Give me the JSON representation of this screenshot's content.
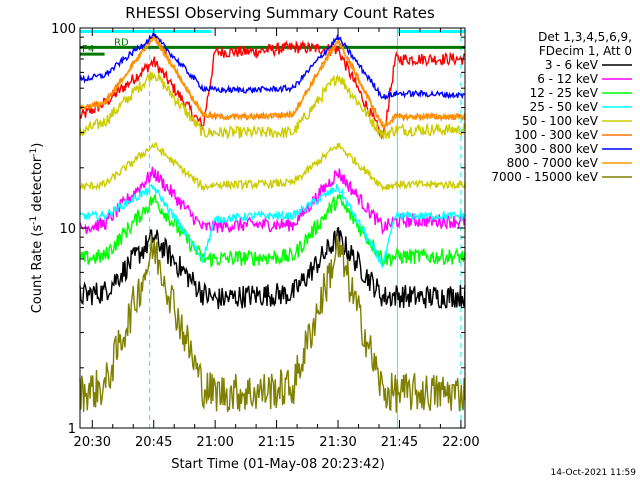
{
  "chart_data": {
    "type": "line",
    "title": "RHESSI Observing Summary Count Rates",
    "xlabel": "Start Time (01-May-08 20:23:42)",
    "ylabel": "Count Rate (s",
    "ylabel_sup": "-1",
    "ylabel_tail": " detector",
    "ylabel_end": ")",
    "y_scale": "log",
    "ylim": [
      1,
      100
    ],
    "x_unit": "minutes after 20:00 UT",
    "xlim": [
      27,
      121
    ],
    "x_ticks": [
      {
        "label": "20:30",
        "value": 30
      },
      {
        "label": "20:45",
        "value": 45
      },
      {
        "label": "21:00",
        "value": 60
      },
      {
        "label": "21:15",
        "value": 75
      },
      {
        "label": "21:30",
        "value": 90
      },
      {
        "label": "21:45",
        "value": 105
      },
      {
        "label": "22:00",
        "value": 120
      }
    ],
    "y_ticks": [
      {
        "label": "1",
        "value": 1
      },
      {
        "label": "10",
        "value": 10
      },
      {
        "label": "100",
        "value": 100
      }
    ],
    "legend_header": [
      "Det 1,3,4,5,6,9,",
      "FDecim 1, Att 0"
    ],
    "legend_position": "right",
    "series": [
      {
        "name": "3 - 6 keV",
        "color": "#000000",
        "base": 4.6,
        "peak": 9.0,
        "noise": 0.12,
        "x": [
          27,
          33,
          45,
          57,
          60,
          69,
          79,
          90,
          101,
          104,
          110,
          121
        ],
        "y": [
          4.6,
          4.8,
          9.0,
          4.7,
          4.4,
          4.6,
          4.7,
          9.0,
          4.5,
          4.6,
          4.5,
          4.6
        ]
      },
      {
        "name": "6 - 12 keV",
        "color": "#ff00ff",
        "base": 10.0,
        "peak": 19.0,
        "noise": 0.07,
        "x": [
          27,
          33,
          45,
          57,
          60,
          69,
          79,
          90,
          101,
          104,
          110,
          121
        ],
        "y": [
          10.0,
          10.5,
          19.0,
          10.0,
          10.2,
          10.4,
          10.4,
          19.0,
          10.0,
          10.8,
          10.9,
          10.8
        ]
      },
      {
        "name": "12 - 25 keV",
        "color": "#00ff00",
        "base": 7.0,
        "peak": 14.0,
        "noise": 0.08,
        "x": [
          27,
          33,
          45,
          57,
          60,
          69,
          79,
          90,
          101,
          104,
          110,
          121
        ],
        "y": [
          7.0,
          7.2,
          14.0,
          7.0,
          7.0,
          7.1,
          7.2,
          14.0,
          7.0,
          7.2,
          7.2,
          7.2
        ]
      },
      {
        "name": "25 - 50 keV",
        "color": "#00ffff",
        "base": 11.5,
        "peak": 16.0,
        "noise": 0.04,
        "x": [
          27,
          33,
          45,
          57,
          60,
          69,
          79,
          90,
          101,
          104,
          110,
          121
        ],
        "y": [
          11.5,
          11.5,
          16.0,
          7.0,
          11.0,
          11.5,
          11.5,
          16.0,
          6.5,
          11.5,
          11.5,
          11.5
        ]
      },
      {
        "name": "50 - 100 keV",
        "color": "#cccc00",
        "base": 16.0,
        "peak": 26.0,
        "noise": 0.04,
        "x": [
          27,
          33,
          45,
          57,
          60,
          69,
          79,
          90,
          101,
          104,
          110,
          121
        ],
        "y": [
          16.0,
          16.5,
          26.0,
          16.0,
          16.5,
          16.5,
          16.8,
          26.0,
          16.0,
          16.5,
          16.5,
          16.5
        ]
      },
      {
        "name": "100 - 300 keV",
        "color": "#ff7700",
        "base": 40.0,
        "peak": 92.0,
        "noise": 0.03,
        "x": [
          27,
          33,
          45,
          57,
          60,
          69,
          79,
          90,
          101,
          104,
          110,
          121
        ],
        "y": [
          40.0,
          42.0,
          92.0,
          37.0,
          36.0,
          36.0,
          37.0,
          88.0,
          32.0,
          36.0,
          36.0,
          36.0
        ]
      },
      {
        "name": "300 - 800 keV",
        "color": "#0000ff",
        "base": 55.0,
        "peak": 92.0,
        "noise": 0.03,
        "x": [
          27,
          33,
          45,
          57,
          60,
          69,
          79,
          90,
          101,
          104,
          110,
          121
        ],
        "y": [
          55.0,
          58.0,
          92.0,
          50.0,
          49.0,
          49.0,
          50.0,
          90.0,
          45.0,
          47.0,
          47.0,
          46.0
        ]
      },
      {
        "name": "800 - 7000 keV",
        "color": "#ff9900",
        "base": 40.0,
        "peak": 90.0,
        "noise": 0.02,
        "x": [
          27,
          33,
          45,
          57,
          60,
          69,
          79,
          90,
          101,
          104,
          110,
          121
        ],
        "y": [
          40.0,
          42.0,
          90.0,
          37.0,
          36.0,
          36.0,
          37.0,
          86.0,
          32.0,
          36.0,
          36.0,
          36.0
        ]
      },
      {
        "name": "7000 - 15000 keV",
        "color": "#808000",
        "base": 1.5,
        "peak": 8.0,
        "noise": 0.2,
        "x": [
          27,
          33,
          45,
          57,
          60,
          69,
          79,
          90,
          101,
          104,
          110,
          121
        ],
        "y": [
          1.5,
          1.6,
          8.0,
          1.6,
          1.5,
          1.5,
          1.6,
          8.0,
          1.5,
          1.5,
          1.5,
          1.5
        ]
      }
    ],
    "extra_series": [
      {
        "name": "red (above legend)",
        "color": "#ff0000",
        "x": [
          27,
          33,
          45,
          57,
          60,
          69,
          79,
          90,
          101,
          104,
          110,
          121
        ],
        "y": [
          36.0,
          42.0,
          68.0,
          32.0,
          76.0,
          76.0,
          80.0,
          78.0,
          28.0,
          70.0,
          70.0,
          70.0
        ]
      },
      {
        "name": "yellow upper",
        "color": "#cccc00",
        "x": [
          27,
          33,
          45,
          57,
          60,
          69,
          79,
          90,
          101,
          104,
          110,
          121
        ],
        "y": [
          30.0,
          34.0,
          60.0,
          30.0,
          30.0,
          30.0,
          30.0,
          58.0,
          29.0,
          31.0,
          31.0,
          31.0
        ]
      }
    ],
    "flags": [
      {
        "label": "RD",
        "color": "#007700",
        "x_start": 27,
        "x_end": 121,
        "level": 80
      },
      {
        "label": "P4",
        "color": "#007700",
        "x_start": 27,
        "x_end": 33,
        "level": 74
      }
    ],
    "saa_band": {
      "color": "#00ffff",
      "intervals": [
        [
          27,
          59
        ],
        [
          104.5,
          121
        ]
      ],
      "level": 96
    },
    "night_markers": {
      "color": "#00ffff",
      "x": [
        27,
        44,
        104.5,
        120
      ]
    },
    "timestamp": "14-Oct-2021 11:59"
  }
}
